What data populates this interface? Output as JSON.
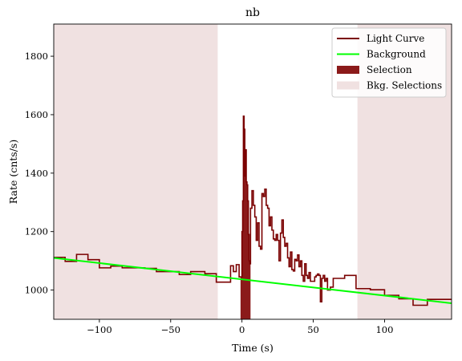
{
  "chart_data": {
    "type": "line",
    "title": "nb",
    "xlabel": "Time (s)",
    "ylabel": "Rate (cnts/s)",
    "xlim": [
      -132,
      147
    ],
    "ylim": [
      900,
      1910
    ],
    "x_ticks": [
      -100,
      -50,
      0,
      50,
      100
    ],
    "x_tick_labels": [
      "−100",
      "−50",
      "0",
      "50",
      "100"
    ],
    "y_ticks": [
      1000,
      1200,
      1400,
      1600,
      1800
    ],
    "y_tick_labels": [
      "1000",
      "1200",
      "1400",
      "1600",
      "1800"
    ],
    "grid": false,
    "legend_position": "top-right",
    "colors": {
      "light_curve": "#7a0000",
      "background": "#00ff00",
      "selection": "#8b1a1a",
      "bkg_selection": "#f0e1e1"
    },
    "legend": [
      {
        "label": "Light Curve",
        "kind": "line",
        "color": "#7a0000"
      },
      {
        "label": "Background",
        "kind": "line",
        "color": "#00ff00"
      },
      {
        "label": "Selection",
        "kind": "patch",
        "color": "#8b1a1a"
      },
      {
        "label": "Bkg. Selections",
        "kind": "patch",
        "color": "#f0e1e1"
      }
    ],
    "series": [
      {
        "name": "Light Curve",
        "step": true,
        "x": [
          -132,
          -124,
          -116,
          -108,
          -100,
          -92,
          -84,
          -76,
          -68,
          -60,
          -52,
          -44,
          -36,
          -28,
          -26,
          -18,
          -8,
          -6,
          -4,
          -2,
          0,
          0.5,
          1,
          1.5,
          2,
          2.5,
          3,
          3.5,
          4,
          4.5,
          5,
          5.5,
          6,
          7,
          8,
          9,
          10,
          11,
          12,
          13,
          14,
          15,
          16,
          17,
          18,
          19,
          20,
          21,
          22,
          23,
          24,
          25,
          26,
          27,
          28,
          29,
          30,
          31,
          32,
          33,
          34,
          35,
          36,
          37,
          38,
          39,
          40,
          41,
          42,
          43,
          44,
          45,
          46,
          47,
          48,
          49,
          50,
          51,
          52,
          53,
          54,
          55,
          56,
          57,
          58,
          59,
          60,
          62,
          64,
          72,
          80,
          90,
          100,
          110,
          120,
          130,
          147
        ],
        "y": [
          1112,
          1098,
          1122,
          1104,
          1076,
          1082,
          1076,
          1076,
          1074,
          1063,
          1063,
          1053,
          1063,
          1063,
          1056,
          1027,
          1083,
          1063,
          1087,
          1045,
          1200,
          1305,
          1595,
          1550,
          1390,
          1480,
          1370,
          1360,
          1305,
          1190,
          1100,
          1090,
          1280,
          1340,
          1290,
          1250,
          1170,
          1230,
          1150,
          1140,
          1330,
          1320,
          1345,
          1290,
          1280,
          1220,
          1250,
          1205,
          1175,
          1170,
          1190,
          1170,
          1100,
          1195,
          1240,
          1180,
          1150,
          1160,
          1110,
          1080,
          1130,
          1070,
          1065,
          1105,
          1100,
          1120,
          1080,
          1100,
          1050,
          1030,
          1090,
          1050,
          1040,
          1060,
          1030,
          1030,
          1030,
          1045,
          1050,
          1055,
          1050,
          960,
          1040,
          1050,
          1030,
          1040,
          1000,
          1010,
          1040,
          1050,
          1005,
          1001,
          982,
          970,
          948,
          968,
          965
        ]
      },
      {
        "name": "Background",
        "x": [
          -132,
          147
        ],
        "y": [
          1110,
          955
        ]
      }
    ],
    "selection": {
      "x": [
        -1,
        6
      ]
    },
    "bkg_selections": [
      {
        "x": [
          -132,
          -17
        ]
      },
      {
        "x": [
          81,
          147
        ]
      }
    ]
  }
}
